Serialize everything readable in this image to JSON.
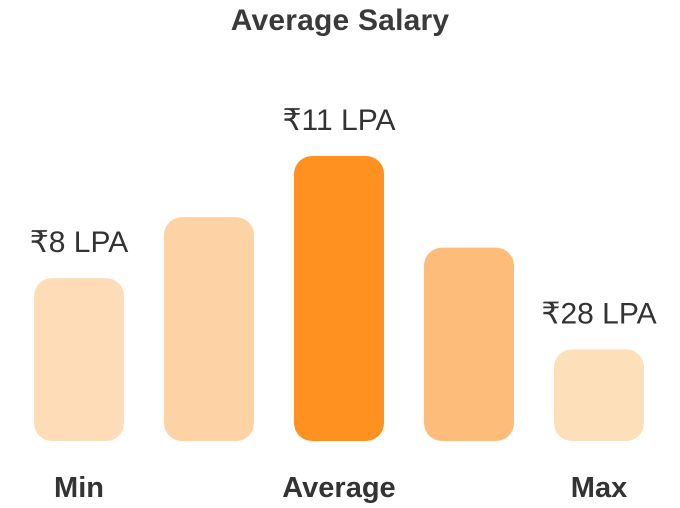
{
  "chart_data": {
    "type": "bar",
    "title": "Average Salary",
    "categories": [
      "Min",
      "",
      "Average",
      "",
      "Max"
    ],
    "values": [
      8,
      11,
      14,
      9.5,
      4.5
    ],
    "value_labels": [
      "₹8 LPA",
      "",
      "₹11 LPA",
      "",
      "₹28 LPA"
    ],
    "colors": [
      "#fddcb7",
      "#fdd3a5",
      "#fe911f",
      "#febc7b",
      "#fddfba"
    ],
    "ylim": [
      0,
      14
    ],
    "xlabel": "",
    "ylabel": "",
    "grid": false,
    "legend": "none"
  }
}
